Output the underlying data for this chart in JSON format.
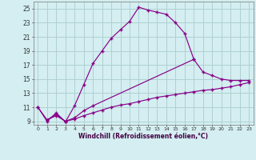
{
  "xlabel": "Windchill (Refroidissement éolien,°C)",
  "background_color": "#d4eef1",
  "grid_color": "#aacccc",
  "line_color": "#880088",
  "xlim": [
    -0.5,
    23.5
  ],
  "ylim": [
    8.5,
    26.0
  ],
  "yticks": [
    9,
    11,
    13,
    15,
    17,
    19,
    21,
    23,
    25
  ],
  "xticks": [
    0,
    1,
    2,
    3,
    4,
    5,
    6,
    7,
    8,
    9,
    10,
    11,
    12,
    13,
    14,
    15,
    16,
    17,
    18,
    19,
    20,
    21,
    22,
    23
  ],
  "curve1_x": [
    0,
    1,
    2,
    3,
    4,
    5,
    6,
    7,
    8,
    9,
    10,
    11,
    12,
    13,
    14,
    15,
    16,
    17
  ],
  "curve1_y": [
    11.0,
    9.0,
    10.2,
    8.9,
    11.2,
    14.2,
    17.2,
    19.0,
    20.8,
    22.0,
    23.2,
    25.2,
    24.8,
    24.5,
    24.2,
    23.0,
    21.5,
    17.8
  ],
  "curve2_x": [
    0,
    1,
    2,
    3,
    4,
    5,
    6,
    17,
    18,
    19,
    20,
    21,
    22,
    23
  ],
  "curve2_y": [
    11.0,
    9.2,
    10.0,
    9.0,
    9.5,
    10.5,
    11.2,
    17.8,
    16.0,
    15.5,
    15.0,
    14.8,
    14.8,
    14.8
  ],
  "curve3_x": [
    1,
    2,
    3,
    4,
    5,
    6,
    7,
    8,
    9,
    10,
    11,
    12,
    13,
    14,
    15,
    16,
    17,
    18,
    19,
    20,
    21,
    22,
    23
  ],
  "curve3_y": [
    9.2,
    9.8,
    9.0,
    9.3,
    9.8,
    10.2,
    10.6,
    11.0,
    11.3,
    11.5,
    11.8,
    12.1,
    12.4,
    12.6,
    12.8,
    13.0,
    13.2,
    13.4,
    13.5,
    13.7,
    13.9,
    14.2,
    14.5
  ]
}
